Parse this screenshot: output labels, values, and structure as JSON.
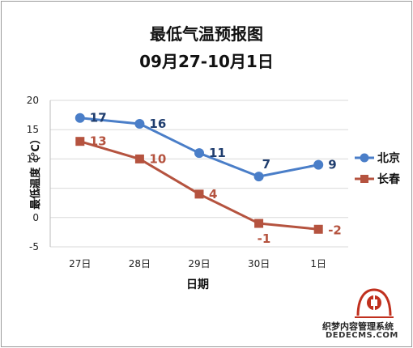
{
  "chart_data": {
    "type": "line",
    "title": "最低气温预报图",
    "subtitle": "09月27-10月1日",
    "xlabel": "日期",
    "ylabel": "最低温度（℃）",
    "categories": [
      "27日",
      "28日",
      "29日",
      "30日",
      "1日"
    ],
    "ylim": [
      -5,
      20
    ],
    "yticks": [
      -5,
      0,
      5,
      10,
      15,
      20
    ],
    "grid": true,
    "legend_position": "right",
    "series": [
      {
        "name": "北京",
        "values": [
          17,
          16,
          11,
          7,
          9
        ],
        "color": "#4a7ec8",
        "marker": "circle"
      },
      {
        "name": "长春",
        "values": [
          13,
          10,
          4,
          -1,
          -2
        ],
        "color": "#b5533f",
        "marker": "square"
      }
    ]
  },
  "watermark": {
    "line1": "织梦内容管理系统",
    "line2": "DEDECMS.COM",
    "seal_color": "#c0301e"
  }
}
